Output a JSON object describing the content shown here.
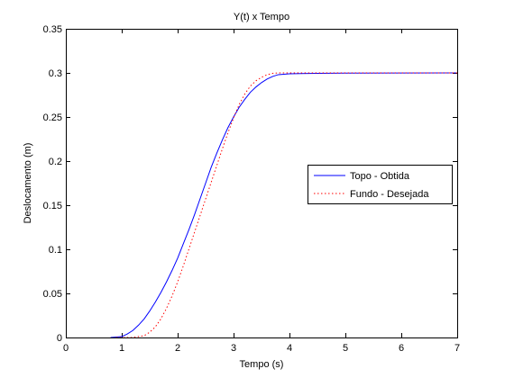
{
  "chart_data": {
    "type": "line",
    "title": "Y(t) x Tempo",
    "xlabel": "Tempo (s)",
    "ylabel": "Deslocamento (m)",
    "xlim": [
      0,
      7
    ],
    "ylim": [
      0,
      0.35
    ],
    "xticks": [
      0,
      1,
      2,
      3,
      4,
      5,
      6,
      7
    ],
    "yticks": [
      0,
      0.05,
      0.1,
      0.15,
      0.2,
      0.25,
      0.3,
      0.35
    ],
    "xtick_labels": [
      "0",
      "1",
      "2",
      "3",
      "4",
      "5",
      "6",
      "7"
    ],
    "ytick_labels": [
      "0",
      "0.05",
      "0.1",
      "0.15",
      "0.2",
      "0.25",
      "0.3",
      "0.35"
    ],
    "grid": false,
    "legend_position": "right-middle",
    "series": [
      {
        "name": "Topo - Obtida",
        "color": "#0000ff",
        "style": "solid",
        "x": [
          0.8,
          1.0,
          1.1,
          1.2,
          1.3,
          1.4,
          1.5,
          1.6,
          1.7,
          1.8,
          1.9,
          2.0,
          2.1,
          2.2,
          2.3,
          2.4,
          2.5,
          2.6,
          2.7,
          2.8,
          2.9,
          3.0,
          3.1,
          3.2,
          3.3,
          3.4,
          3.5,
          3.6,
          3.7,
          3.8,
          3.9,
          4.0,
          4.2,
          4.5,
          5.0,
          6.0,
          7.0
        ],
        "y": [
          0.0,
          0.001,
          0.004,
          0.008,
          0.014,
          0.021,
          0.03,
          0.04,
          0.051,
          0.063,
          0.076,
          0.09,
          0.106,
          0.122,
          0.139,
          0.157,
          0.175,
          0.193,
          0.209,
          0.224,
          0.238,
          0.25,
          0.261,
          0.27,
          0.278,
          0.284,
          0.289,
          0.293,
          0.296,
          0.298,
          0.2985,
          0.299,
          0.2992,
          0.2995,
          0.2998,
          0.2999,
          0.3
        ]
      },
      {
        "name": "Fundo - Desejada",
        "color": "#ff0000",
        "style": "dotted",
        "x": [
          0.9,
          1.2,
          1.4,
          1.5,
          1.6,
          1.7,
          1.8,
          1.9,
          2.0,
          2.1,
          2.2,
          2.3,
          2.4,
          2.5,
          2.6,
          2.7,
          2.8,
          2.9,
          3.0,
          3.1,
          3.2,
          3.3,
          3.4,
          3.5,
          3.6,
          3.7,
          3.8,
          3.9,
          4.0,
          4.2,
          4.5,
          5.0,
          6.0,
          7.0
        ],
        "y": [
          0.0,
          0.0,
          0.002,
          0.006,
          0.012,
          0.021,
          0.033,
          0.047,
          0.063,
          0.081,
          0.1,
          0.119,
          0.138,
          0.157,
          0.176,
          0.195,
          0.214,
          0.232,
          0.249,
          0.264,
          0.276,
          0.285,
          0.291,
          0.295,
          0.298,
          0.2995,
          0.3,
          0.3,
          0.3,
          0.3,
          0.3,
          0.3,
          0.3,
          0.3
        ]
      }
    ]
  }
}
